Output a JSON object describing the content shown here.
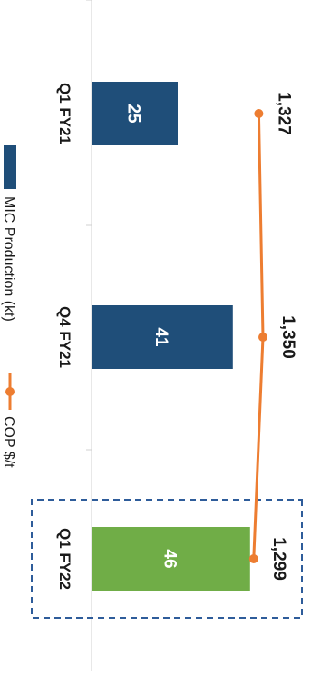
{
  "chart_data": {
    "type": "bar",
    "orientation": "rotated-90-clockwise",
    "title": "",
    "xlabel": "",
    "ylabel": "",
    "categories": [
      "Q1 FY21",
      "Q4 FY21",
      "Q1 FY22"
    ],
    "series": [
      {
        "name": "MIC Production (kt)",
        "type": "bar",
        "values": [
          25,
          41,
          46
        ],
        "colors": [
          "#1f4e79",
          "#1f4e79",
          "#70ad47"
        ]
      },
      {
        "name": "COP $/t",
        "type": "line",
        "values": [
          1327,
          1350,
          1299
        ],
        "value_labels": [
          "1,327",
          "1,350",
          "1,299"
        ],
        "color": "#ed7d31"
      }
    ],
    "bar_value_labels": [
      "25",
      "41",
      "46"
    ],
    "ylim_bars": [
      0,
      60
    ],
    "ylim_line": [
      0,
      1500
    ],
    "highlight": {
      "category": "Q1 FY22",
      "style": "dashed-box",
      "color": "#2e5c9a"
    },
    "grid": false,
    "legend": {
      "placement": "left"
    }
  },
  "colors": {
    "bar_default": "#1f4e79",
    "bar_highlight": "#70ad47",
    "line": "#ed7d31",
    "axis": "#d0d0d0",
    "text": "#1a1a1a",
    "bar_text": "#ffffff"
  }
}
